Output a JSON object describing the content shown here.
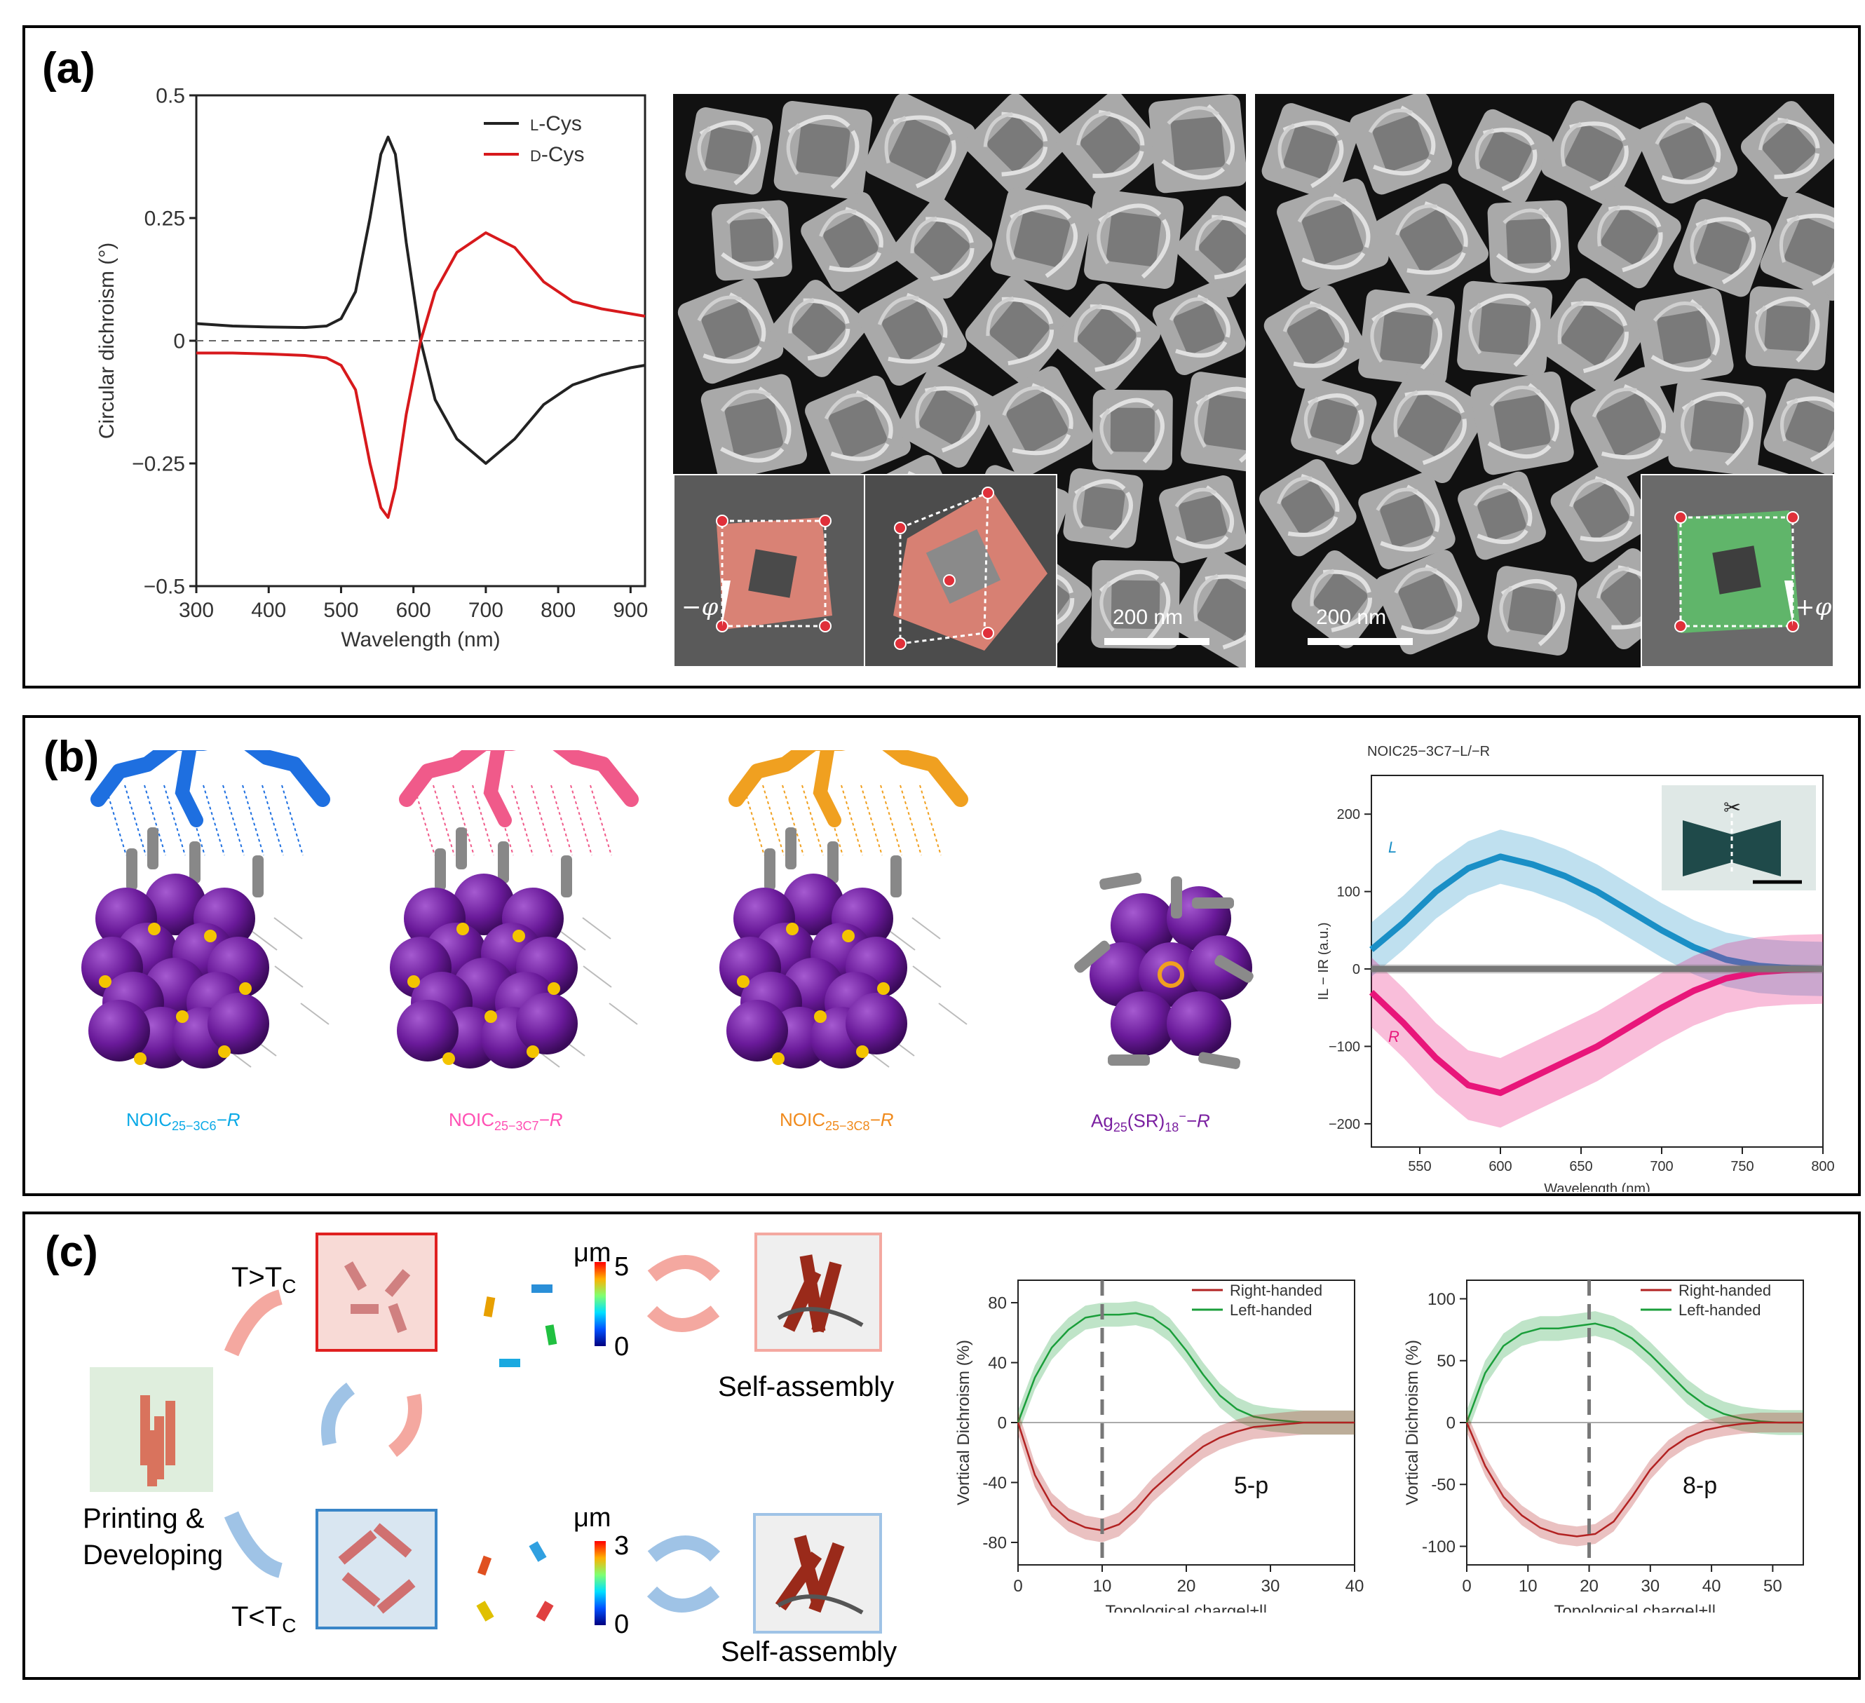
{
  "panels": {
    "a": "(a)",
    "b": "(b)",
    "c": "(c)"
  },
  "scale_bar": "200 nm",
  "insets": {
    "left_angle": "−φ",
    "right_angle": "+φ"
  },
  "molecules": [
    {
      "base": "NOIC",
      "sub": "25−3C6",
      "suffix": "−R",
      "color": "#0aa9e6"
    },
    {
      "base": "NOIC",
      "sub": "25−3C7",
      "suffix": "−R",
      "color": "#ff4fb3"
    },
    {
      "base": "NOIC",
      "sub": "25−3C8",
      "suffix": "−R",
      "color": "#f08a1c"
    },
    {
      "base": "Ag",
      "sub": "25",
      "mid": "(SR)",
      "sub2": "18",
      "sup": "−",
      "suffix": "−R",
      "color": "#7a1fa0"
    }
  ],
  "panel_c": {
    "t_high": "T>T",
    "t_low": "T<T",
    "t_sub": "C",
    "printing": "Printing &",
    "developing": "Developing",
    "self_assembly_top": "Self-assembly",
    "self_assembly_bottom": "Self-assembly",
    "cbar_top": {
      "unit": "μm",
      "max": "5",
      "min": "0"
    },
    "cbar_bottom": {
      "unit": "μm",
      "max": "3",
      "min": "0"
    }
  },
  "chart_data": [
    {
      "id": "cd",
      "type": "line",
      "title": "",
      "xlabel": "Wavelength (nm)",
      "ylabel": "Circular dichroism (°)",
      "xlim": [
        300,
        920
      ],
      "ylim": [
        -0.5,
        0.5
      ],
      "xticks": [
        "300",
        "400",
        "500",
        "600",
        "700",
        "800",
        "900"
      ],
      "yticks": [
        "0.5",
        "0.25",
        "0",
        "−0.25",
        "−0.5"
      ],
      "legend": [
        {
          "prefix": "L",
          "name": "-Cys",
          "color": "#222222"
        },
        {
          "prefix": "D",
          "name": "-Cys",
          "color": "#d7191c"
        }
      ],
      "series": [
        {
          "name": "L-Cys",
          "color": "#222222",
          "x": [
            300,
            350,
            400,
            450,
            480,
            500,
            520,
            540,
            555,
            565,
            575,
            590,
            610,
            630,
            660,
            700,
            740,
            780,
            820,
            860,
            900,
            920
          ],
          "y": [
            0.035,
            0.03,
            0.028,
            0.027,
            0.03,
            0.045,
            0.1,
            0.25,
            0.38,
            0.415,
            0.38,
            0.2,
            0.0,
            -0.12,
            -0.2,
            -0.25,
            -0.2,
            -0.13,
            -0.09,
            -0.07,
            -0.055,
            -0.05
          ]
        },
        {
          "name": "D-Cys",
          "color": "#d7191c",
          "x": [
            300,
            350,
            400,
            450,
            480,
            500,
            520,
            540,
            555,
            565,
            575,
            590,
            610,
            630,
            660,
            700,
            740,
            780,
            820,
            860,
            900,
            920
          ],
          "y": [
            -0.025,
            -0.025,
            -0.027,
            -0.03,
            -0.035,
            -0.05,
            -0.1,
            -0.25,
            -0.34,
            -0.36,
            -0.3,
            -0.15,
            0.0,
            0.1,
            0.18,
            0.22,
            0.19,
            0.12,
            0.08,
            0.065,
            0.055,
            0.05
          ]
        }
      ]
    },
    {
      "id": "lr",
      "type": "line",
      "title": "NOIC25−3C7−L/−R",
      "xlabel": "Wavelength (nm)",
      "ylabel": "IL − IR (a.u.)",
      "xlim": [
        520,
        800
      ],
      "ylim": [
        -230,
        250
      ],
      "xticks": [
        "550",
        "600",
        "650",
        "700",
        "750",
        "800"
      ],
      "yticks": [
        "200",
        "100",
        "0",
        "−100",
        "−200"
      ],
      "series": [
        {
          "name": "L",
          "color": "#1a8fc6",
          "band": 35,
          "x": [
            520,
            540,
            560,
            580,
            600,
            620,
            640,
            660,
            680,
            700,
            720,
            740,
            760,
            780,
            800
          ],
          "y": [
            25,
            60,
            100,
            130,
            145,
            135,
            120,
            100,
            75,
            50,
            28,
            12,
            4,
            1,
            0
          ]
        },
        {
          "name": "R",
          "color": "#e8167a",
          "band": 45,
          "x": [
            520,
            540,
            560,
            580,
            600,
            620,
            640,
            660,
            680,
            700,
            720,
            740,
            760,
            780,
            800
          ],
          "y": [
            -30,
            -70,
            -115,
            -150,
            -160,
            -140,
            -120,
            -100,
            -75,
            -50,
            -28,
            -12,
            -4,
            -1,
            0
          ]
        },
        {
          "name": "control",
          "color": "#777777",
          "band": 6,
          "x": [
            520,
            800
          ],
          "y": [
            0,
            0
          ]
        }
      ]
    },
    {
      "id": "vd5",
      "type": "line",
      "xlabel": "Topological charge|±l|",
      "ylabel": "Vortical Dichroism (%)",
      "xlim": [
        0,
        40
      ],
      "ylim": [
        -95,
        95
      ],
      "xticks": [
        "0",
        "10",
        "20",
        "30",
        "40"
      ],
      "yticks": [
        "80",
        "40",
        "0",
        "-40",
        "-80"
      ],
      "marker_x": 10,
      "label": "5-p",
      "legend": [
        {
          "name": "Right-handed",
          "color": "#b22222"
        },
        {
          "name": "Left-handed",
          "color": "#1a9e3a"
        }
      ],
      "series": [
        {
          "name": "Left-handed",
          "color": "#1a9e3a",
          "band": 8,
          "x": [
            0,
            2,
            4,
            6,
            8,
            10,
            12,
            14,
            16,
            18,
            20,
            22,
            24,
            26,
            28,
            30,
            32,
            34,
            36,
            38,
            40
          ],
          "y": [
            0,
            30,
            50,
            62,
            70,
            72,
            72,
            73,
            70,
            62,
            48,
            32,
            18,
            9,
            4,
            2,
            1,
            0,
            0,
            0,
            0
          ]
        },
        {
          "name": "Right-handed",
          "color": "#b22222",
          "band": 8,
          "x": [
            0,
            2,
            4,
            6,
            8,
            10,
            12,
            14,
            16,
            18,
            20,
            22,
            24,
            26,
            28,
            30,
            32,
            34,
            36,
            38,
            40
          ],
          "y": [
            0,
            -35,
            -55,
            -65,
            -70,
            -72,
            -68,
            -58,
            -45,
            -35,
            -25,
            -16,
            -10,
            -6,
            -3,
            -2,
            -1,
            0,
            0,
            0,
            0
          ]
        }
      ]
    },
    {
      "id": "vd8",
      "type": "line",
      "xlabel": "Topological charge|±l|",
      "ylabel": "Vortical Dichroism (%)",
      "xlim": [
        0,
        55
      ],
      "ylim": [
        -115,
        115
      ],
      "xticks": [
        "0",
        "10",
        "20",
        "30",
        "40",
        "50"
      ],
      "yticks": [
        "100",
        "50",
        "0",
        "-50",
        "-100"
      ],
      "marker_x": 20,
      "label": "8-p",
      "legend": [
        {
          "name": "Right-handed",
          "color": "#b22222"
        },
        {
          "name": "Left-handed",
          "color": "#1a9e3a"
        }
      ],
      "series": [
        {
          "name": "Left-handed",
          "color": "#1a9e3a",
          "band": 10,
          "x": [
            0,
            3,
            6,
            9,
            12,
            15,
            18,
            21,
            24,
            27,
            30,
            33,
            36,
            39,
            42,
            45,
            48,
            51,
            55
          ],
          "y": [
            0,
            40,
            62,
            72,
            76,
            76,
            78,
            80,
            76,
            68,
            55,
            40,
            25,
            14,
            7,
            3,
            1,
            0,
            0
          ]
        },
        {
          "name": "Right-handed",
          "color": "#b22222",
          "band": 8,
          "x": [
            0,
            3,
            6,
            9,
            12,
            15,
            18,
            21,
            24,
            27,
            30,
            33,
            36,
            39,
            42,
            45,
            48,
            51,
            55
          ],
          "y": [
            0,
            -35,
            -60,
            -75,
            -85,
            -90,
            -92,
            -90,
            -80,
            -60,
            -38,
            -22,
            -12,
            -6,
            -3,
            -1,
            0,
            0,
            0
          ]
        }
      ]
    }
  ]
}
